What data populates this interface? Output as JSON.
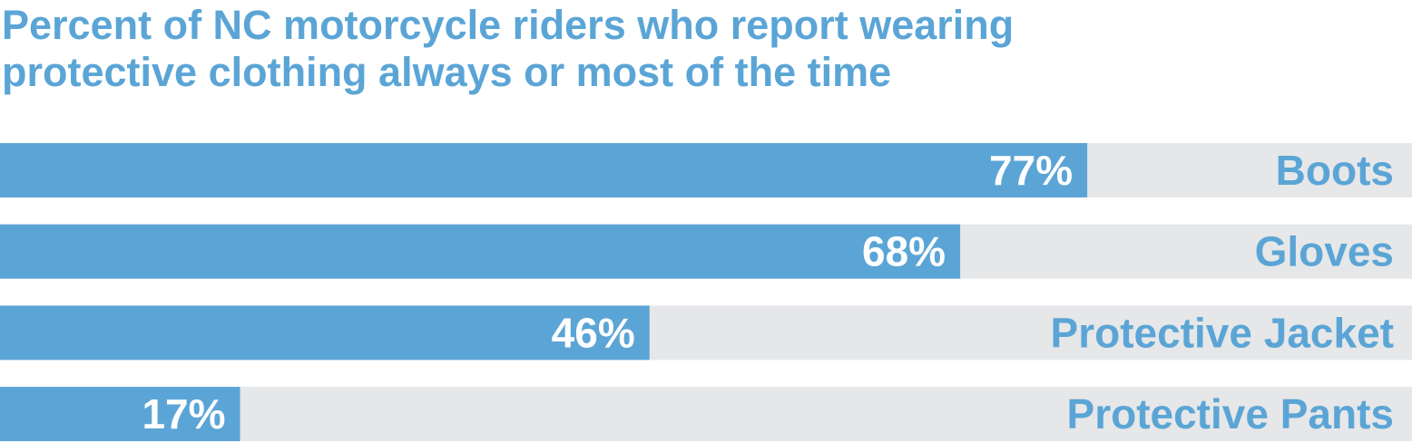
{
  "title_lines": [
    "Percent of NC motorcycle riders who report wearing",
    "protective clothing always or most of the time"
  ],
  "colors": {
    "bar": "#5ba5d6",
    "track": "#e6e7e8",
    "value_label": "#ffffff",
    "category_label": "#5ba5d6",
    "title": "#5ba5d6"
  },
  "chart_data": {
    "type": "bar",
    "orientation": "horizontal",
    "title": "Percent of NC motorcycle riders who report wearing protective clothing always or most of the time",
    "categories": [
      "Boots",
      "Gloves",
      "Protective Jacket",
      "Protective Pants"
    ],
    "values": [
      77,
      68,
      46,
      17
    ],
    "value_labels": [
      "77%",
      "68%",
      "46%",
      "17%"
    ],
    "xlim": [
      0,
      100
    ],
    "xlabel": "",
    "ylabel": "",
    "grid": false,
    "legend": "none"
  }
}
